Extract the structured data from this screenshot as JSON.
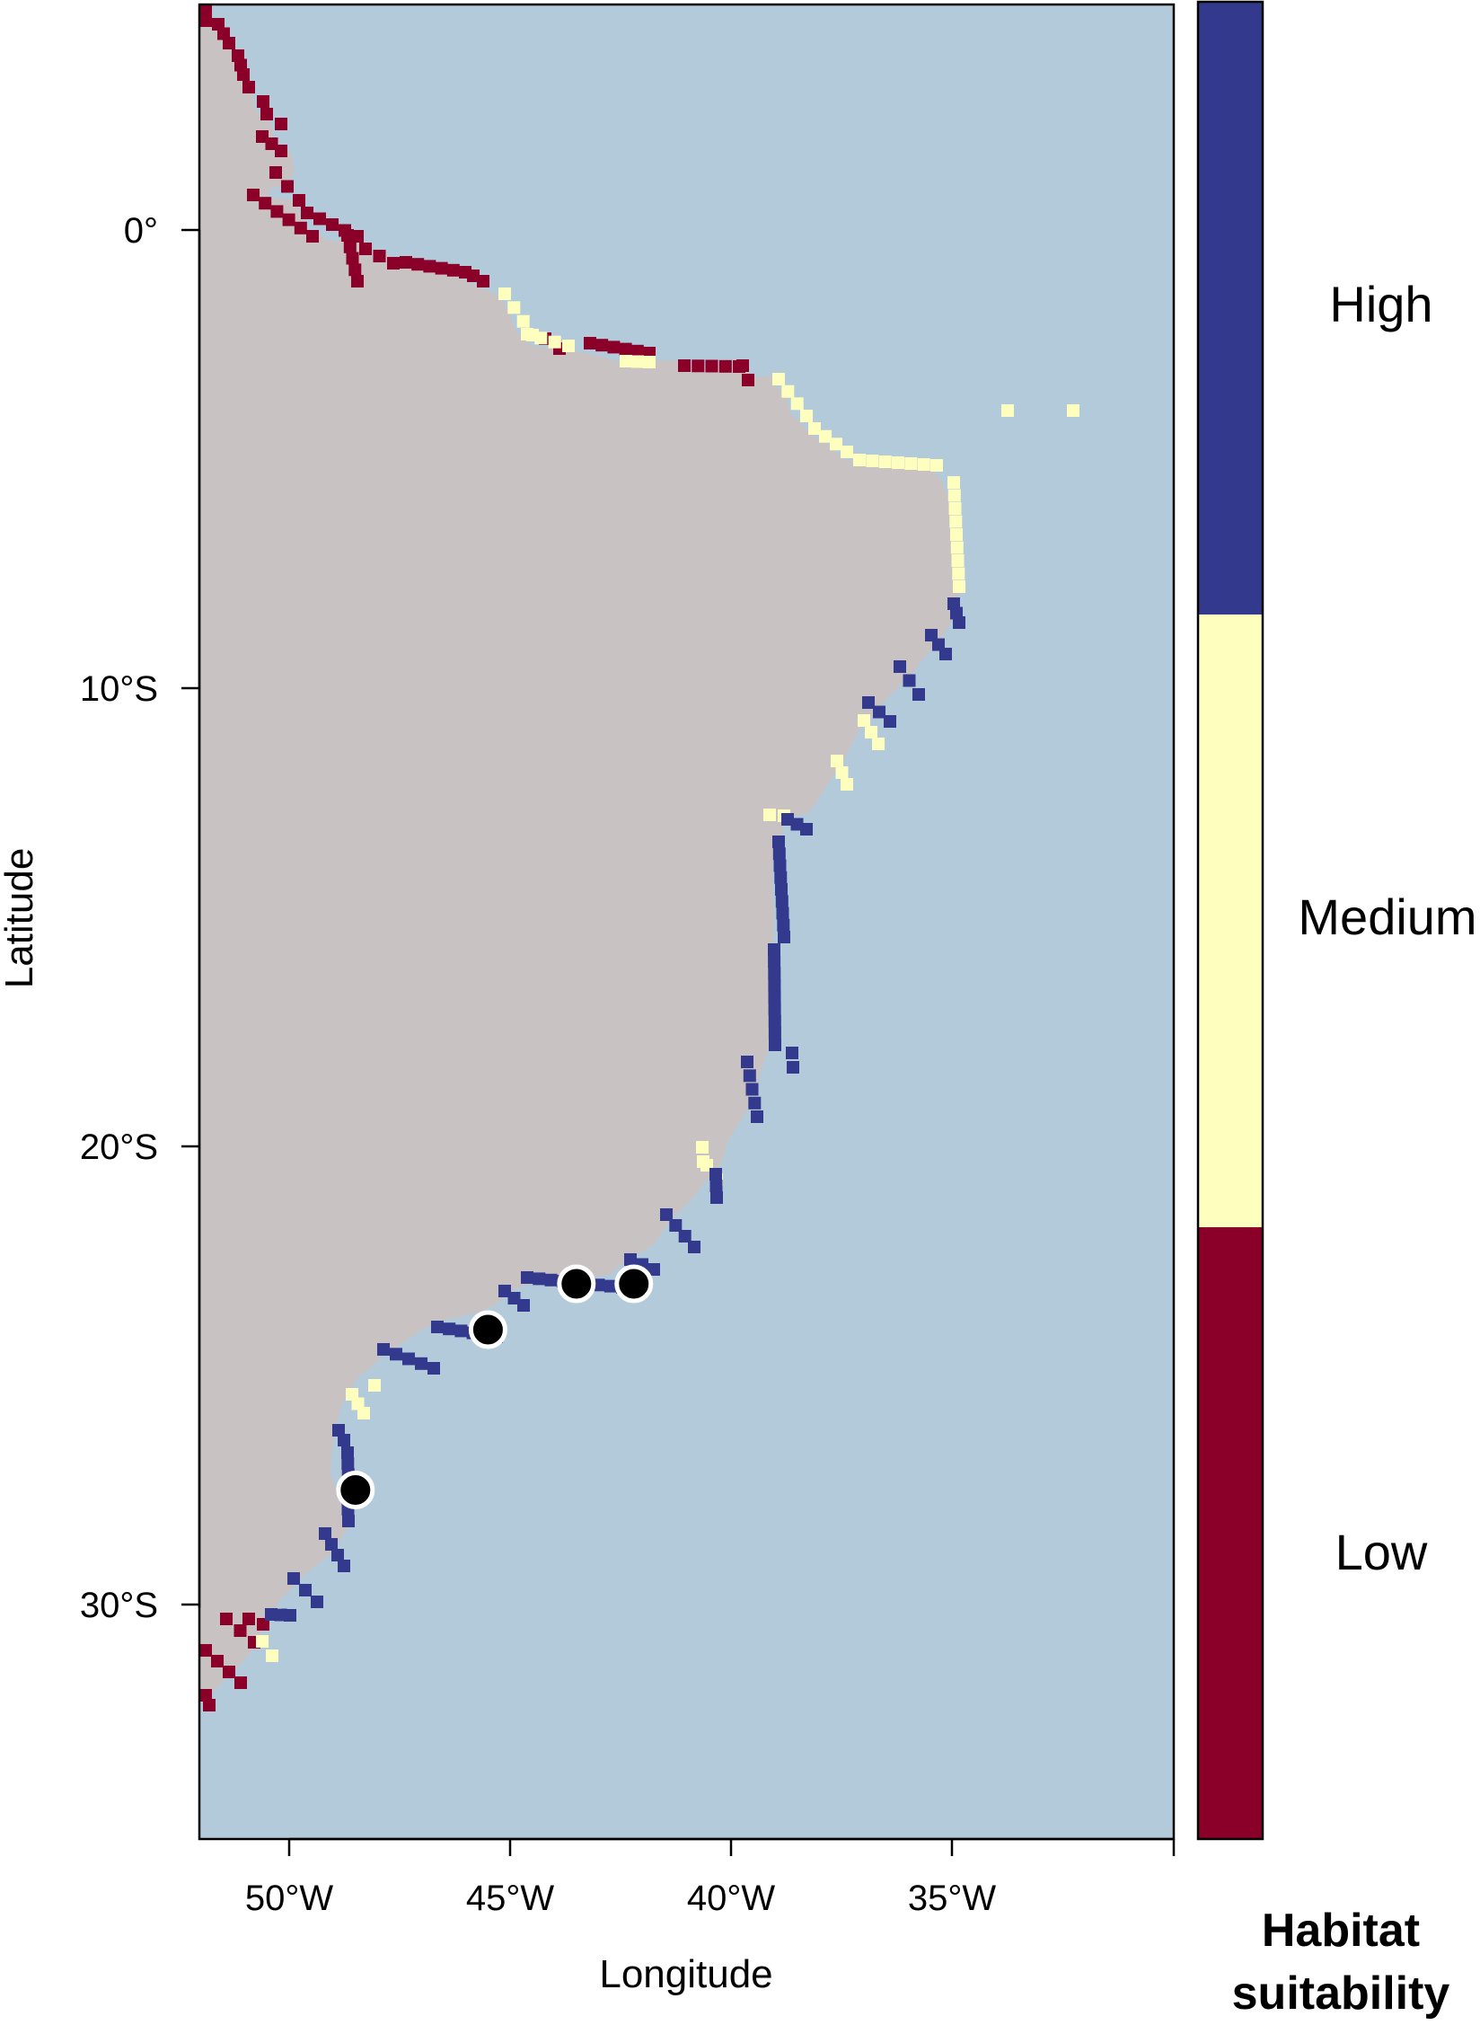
{
  "map": {
    "ocean_color": "#b3cada",
    "land_color": "#c9c2c3",
    "x_axis": {
      "label": "Longitude",
      "ticks": [
        {
          "lon": -50,
          "label": "50°W"
        },
        {
          "lon": -45,
          "label": "45°W"
        },
        {
          "lon": -40,
          "label": "40°W"
        },
        {
          "lon": -35,
          "label": "35°W"
        }
      ]
    },
    "y_axis": {
      "label": "Latitude",
      "ticks": [
        {
          "lat": 0,
          "label": "0°"
        },
        {
          "lat": -10,
          "label": "10°S"
        },
        {
          "lat": -20,
          "label": "20°S"
        },
        {
          "lat": -30,
          "label": "30°S"
        }
      ]
    },
    "occurrence_points": [
      {
        "lon": -48.5,
        "lat": -27.5
      },
      {
        "lon": -45.5,
        "lat": -24.0
      },
      {
        "lon": -43.5,
        "lat": -23.0
      },
      {
        "lon": -42.2,
        "lat": -23.0
      }
    ]
  },
  "legend": {
    "title_line1": "Habitat",
    "title_line2": "suitability",
    "classes": [
      {
        "label": "High",
        "color": "#333a8e"
      },
      {
        "label": "Medium",
        "color": "#fefebe"
      },
      {
        "label": "Low",
        "color": "#8a0029"
      }
    ]
  }
}
